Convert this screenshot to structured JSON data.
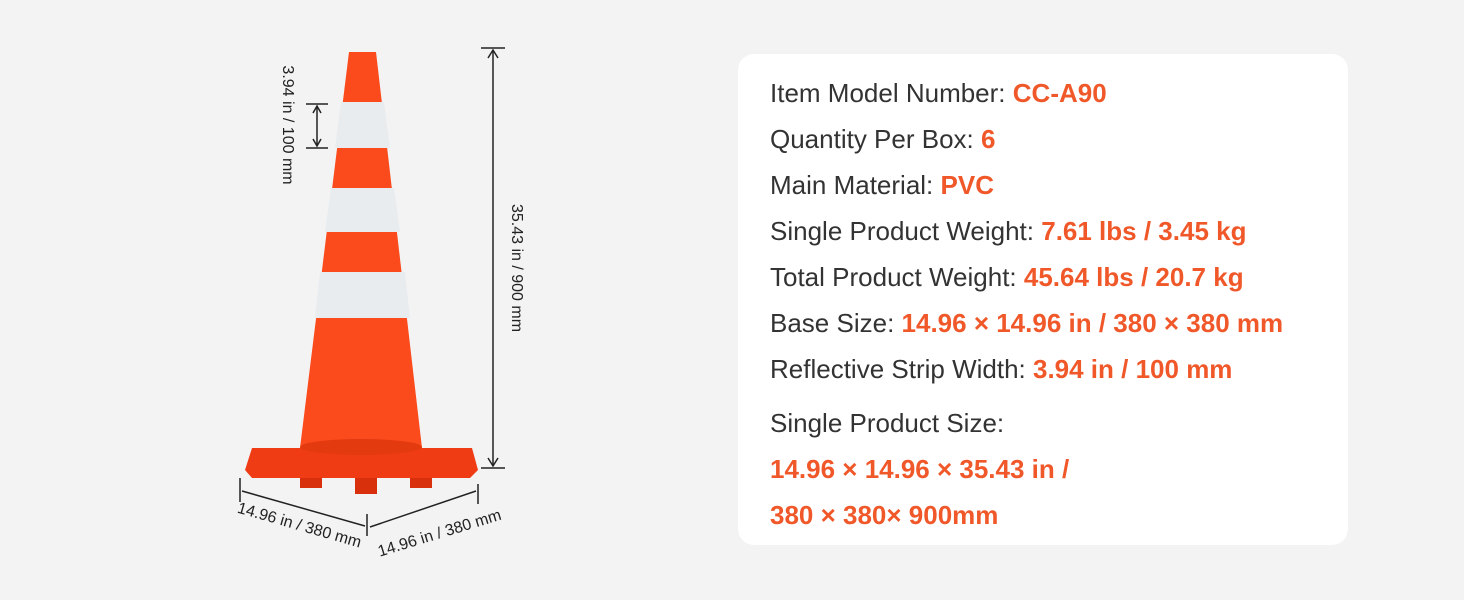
{
  "dimensions": {
    "strip_height": "3.94 in / 100 mm",
    "height": "35.43 in / 900 mm",
    "base_width": "14.96 in / 380 mm",
    "base_depth": "14.96 in / 380 mm"
  },
  "specs": [
    {
      "label": "Item Model Number:",
      "value": "CC-A90"
    },
    {
      "label": "Quantity Per Box:",
      "value": "6"
    },
    {
      "label": "Main Material:",
      "value": "PVC"
    },
    {
      "label": "Single Product Weight:",
      "value": "7.61 lbs / 3.45 kg"
    },
    {
      "label": "Total Product Weight:",
      "value": "45.64 lbs / 20.7 kg"
    },
    {
      "label": "Base Size:",
      "value": "14.96  × 14.96 in / 380 × 380 mm"
    },
    {
      "label": "Reflective Strip Width:",
      "value": "3.94 in / 100 mm"
    }
  ],
  "product_size": {
    "label": "Single Product Size:",
    "lines": [
      "14.96  × 14.96 × 35.43 in /",
      "380 × 380× 900mm"
    ]
  }
}
